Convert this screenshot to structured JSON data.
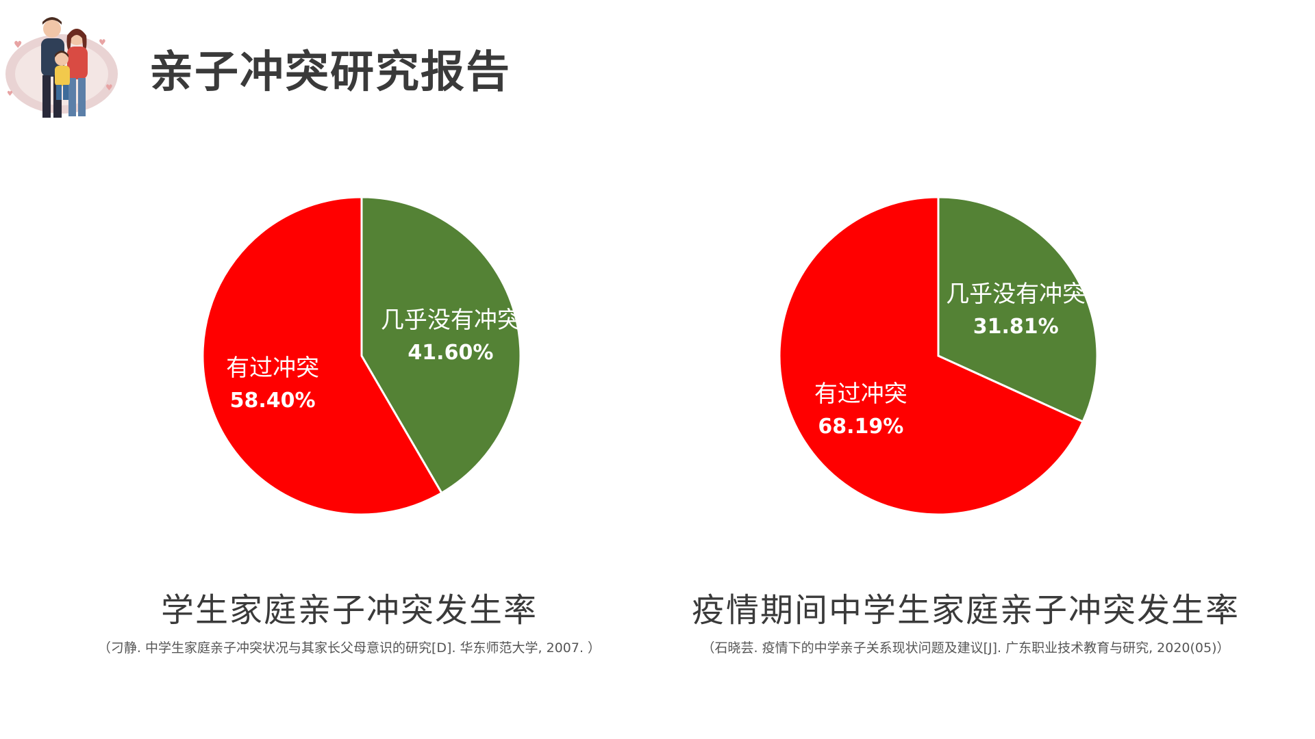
{
  "title": "亲子冲突研究报告",
  "colors": {
    "conflict": "#ff0000",
    "no_conflict": "#548235",
    "text": "#3a3a3a"
  },
  "chart_data": [
    {
      "type": "pie",
      "title": "学生家庭亲子冲突发生率",
      "source": "（刁静. 中学生家庭亲子冲突状况与其家长父母意识的研究[D]. 华东师范大学, 2007. ）",
      "slices": [
        {
          "label": "几乎没有冲突",
          "value": 41.6,
          "display": "41.60%",
          "color": "#548235"
        },
        {
          "label": "有过冲突",
          "value": 58.4,
          "display": "58.40%",
          "color": "#ff0000"
        }
      ]
    },
    {
      "type": "pie",
      "title": "疫情期间中学生家庭亲子冲突发生率",
      "source": "（石晓芸. 疫情下的中学亲子关系现状问题及建议[J]. 广东职业技术教育与研究, 2020(05)）",
      "slices": [
        {
          "label": "几乎没有冲突",
          "value": 31.81,
          "display": "31.81%",
          "color": "#548235"
        },
        {
          "label": "有过冲突",
          "value": 68.19,
          "display": "68.19%",
          "color": "#ff0000"
        }
      ]
    }
  ]
}
